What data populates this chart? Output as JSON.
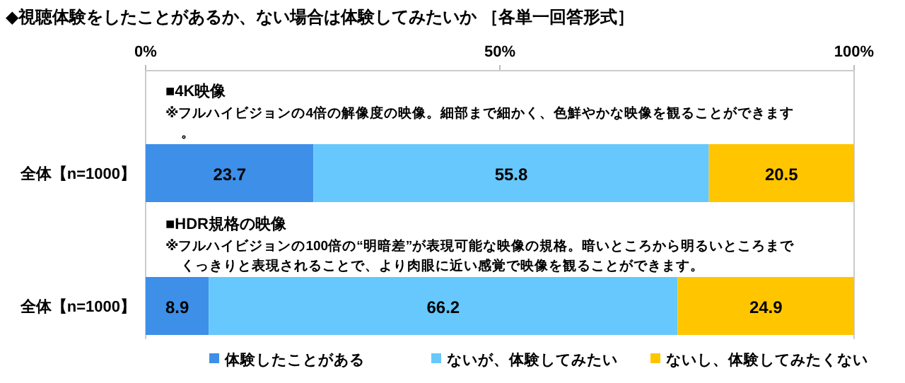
{
  "chart_data": {
    "type": "bar",
    "orientation": "horizontal",
    "stacked": true,
    "title": "◆視聴体験をしたことがあるか、ない場合は体験してみたいか ［各単一回答形式］",
    "categories": [
      "全体【n=1000】",
      "全体【n=1000】"
    ],
    "series": [
      {
        "name": "体験したことがある",
        "color": "#3d8fe8",
        "values": [
          23.7,
          8.9
        ]
      },
      {
        "name": "ないが、体験してみたい",
        "color": "#66c8fc",
        "values": [
          55.8,
          66.2
        ]
      },
      {
        "name": "ないし、体験してみたくない",
        "color": "#ffc600",
        "values": [
          20.5,
          24.9
        ]
      }
    ],
    "xlim": [
      0,
      100
    ],
    "xticks": [
      {
        "value": 0,
        "label": "0%"
      },
      {
        "value": 50,
        "label": "50%"
      },
      {
        "value": 100,
        "label": "100%"
      }
    ],
    "data_labels": true,
    "legend": "bottom",
    "annotations": [
      "■4K映像",
      "※フルハイビジョンの4倍の解像度の映像。細部まで細かく、色鮮やかな映像を観ることができます。",
      "■HDR規格の映像",
      "※フルハイビジョンの100倍の“明暗差”が表現可能な映像の規格。暗いところから明るいところまでくっきりと表現されることで、より肉眼に近い感覚で映像を観ることができます。"
    ]
  }
}
